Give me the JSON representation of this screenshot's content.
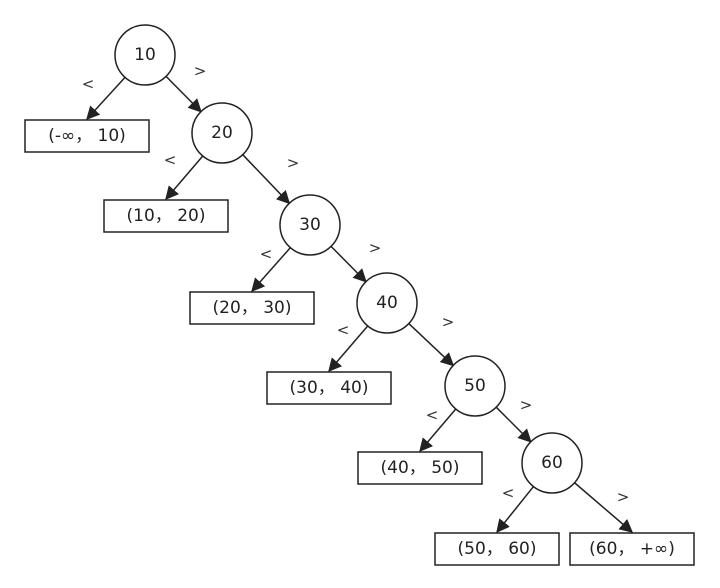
{
  "tree": {
    "nodes": [
      {
        "id": "n10",
        "label": "10"
      },
      {
        "id": "n20",
        "label": "20"
      },
      {
        "id": "n30",
        "label": "30"
      },
      {
        "id": "n40",
        "label": "40"
      },
      {
        "id": "n50",
        "label": "50"
      },
      {
        "id": "n60",
        "label": "60"
      }
    ],
    "leaves": [
      {
        "id": "l0",
        "label": "(-∞， 10)"
      },
      {
        "id": "l1",
        "label": "(10， 20)"
      },
      {
        "id": "l2",
        "label": "(20， 30)"
      },
      {
        "id": "l3",
        "label": "(30， 40)"
      },
      {
        "id": "l4",
        "label": "(40， 50)"
      },
      {
        "id": "l5",
        "label": "(50， 60)"
      },
      {
        "id": "l6",
        "label": "(60， +∞)"
      }
    ],
    "edges": [
      {
        "from": "n10",
        "to": "l0",
        "label": "<"
      },
      {
        "from": "n10",
        "to": "n20",
        "label": ">"
      },
      {
        "from": "n20",
        "to": "l1",
        "label": "<"
      },
      {
        "from": "n20",
        "to": "n30",
        "label": ">"
      },
      {
        "from": "n30",
        "to": "l2",
        "label": "<"
      },
      {
        "from": "n30",
        "to": "n40",
        "label": ">"
      },
      {
        "from": "n40",
        "to": "l3",
        "label": "<"
      },
      {
        "from": "n40",
        "to": "n50",
        "label": ">"
      },
      {
        "from": "n50",
        "to": "l4",
        "label": "<"
      },
      {
        "from": "n50",
        "to": "n60",
        "label": ">"
      },
      {
        "from": "n60",
        "to": "l5",
        "label": "<"
      },
      {
        "from": "n60",
        "to": "l6",
        "label": ">"
      }
    ]
  }
}
